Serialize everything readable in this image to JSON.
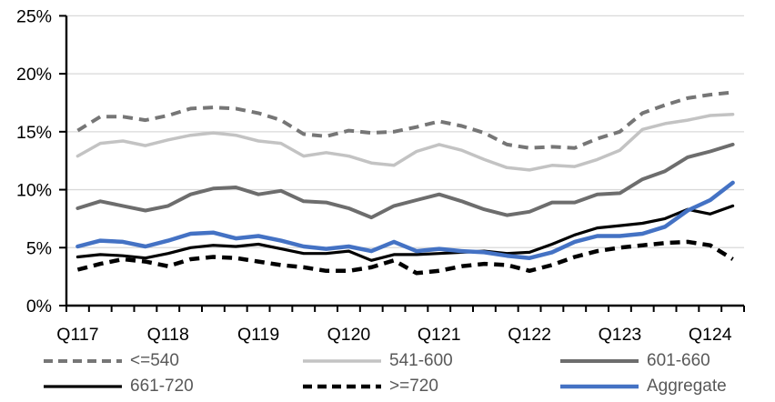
{
  "chart_data": {
    "type": "line",
    "title": "",
    "xlabel": "",
    "ylabel": "",
    "grid": true,
    "legend_position": "bottom",
    "y_axis": {
      "min": 0,
      "max": 25,
      "step": 5,
      "tick_labels": [
        "0%",
        "5%",
        "10%",
        "15%",
        "20%",
        "25%"
      ],
      "unit": "%"
    },
    "x_axis": {
      "shown_tick_labels": [
        "Q117",
        "Q118",
        "Q119",
        "Q120",
        "Q121",
        "Q122",
        "Q123",
        "Q124"
      ],
      "categories": [
        "Q117",
        "Q217",
        "Q317",
        "Q417",
        "Q118",
        "Q218",
        "Q318",
        "Q418",
        "Q119",
        "Q219",
        "Q319",
        "Q419",
        "Q120",
        "Q220",
        "Q320",
        "Q420",
        "Q121",
        "Q221",
        "Q321",
        "Q421",
        "Q122",
        "Q222",
        "Q322",
        "Q422",
        "Q123",
        "Q223",
        "Q323",
        "Q423",
        "Q124",
        "Q224"
      ]
    },
    "series": [
      {
        "name": "<=540",
        "color": "#767676",
        "style": "dashed",
        "width": 4,
        "values": [
          15.1,
          16.3,
          16.3,
          16.0,
          16.4,
          17.0,
          17.1,
          17.0,
          16.6,
          16.0,
          14.8,
          14.6,
          15.1,
          14.9,
          15.0,
          15.4,
          15.9,
          15.5,
          14.9,
          13.9,
          13.6,
          13.7,
          13.6,
          14.4,
          15.0,
          16.6,
          17.3,
          17.9,
          18.2,
          18.4
        ]
      },
      {
        "name": "541-600",
        "color": "#C3C3C3",
        "style": "solid",
        "width": 3.5,
        "values": [
          12.9,
          14.0,
          14.2,
          13.8,
          14.3,
          14.7,
          14.9,
          14.7,
          14.2,
          14.0,
          12.9,
          13.2,
          12.9,
          12.3,
          12.1,
          13.3,
          13.9,
          13.4,
          12.6,
          11.9,
          11.7,
          12.1,
          12.0,
          12.6,
          13.4,
          15.2,
          15.7,
          16.0,
          16.4,
          16.5
        ]
      },
      {
        "name": "601-660",
        "color": "#6D6D6D",
        "style": "solid",
        "width": 4,
        "values": [
          8.4,
          9.0,
          8.6,
          8.2,
          8.6,
          9.6,
          10.1,
          10.2,
          9.6,
          9.9,
          9.0,
          8.9,
          8.4,
          7.6,
          8.6,
          9.1,
          9.6,
          9.0,
          8.3,
          7.8,
          8.1,
          8.9,
          8.9,
          9.6,
          9.7,
          10.9,
          11.6,
          12.8,
          13.3,
          13.9
        ]
      },
      {
        "name": "661-720",
        "color": "#000000",
        "style": "solid",
        "width": 3.2,
        "values": [
          4.2,
          4.4,
          4.3,
          4.1,
          4.5,
          5.0,
          5.2,
          5.1,
          5.3,
          4.9,
          4.5,
          4.5,
          4.7,
          3.9,
          4.4,
          4.4,
          4.5,
          4.6,
          4.7,
          4.5,
          4.6,
          5.3,
          6.1,
          6.7,
          6.9,
          7.1,
          7.5,
          8.3,
          7.9,
          8.6
        ]
      },
      {
        "name": ">=720",
        "color": "#000000",
        "style": "dashed",
        "width": 4.5,
        "values": [
          3.1,
          3.6,
          4.0,
          3.8,
          3.4,
          4.0,
          4.2,
          4.1,
          3.8,
          3.5,
          3.3,
          3.0,
          3.0,
          3.3,
          3.9,
          2.8,
          3.0,
          3.4,
          3.6,
          3.5,
          3.0,
          3.5,
          4.2,
          4.7,
          5.0,
          5.2,
          5.4,
          5.5,
          5.2,
          4.0
        ]
      },
      {
        "name": "Aggregate",
        "color": "#4472C4",
        "style": "solid",
        "width": 4.5,
        "values": [
          5.1,
          5.6,
          5.5,
          5.1,
          5.6,
          6.2,
          6.3,
          5.8,
          6.0,
          5.6,
          5.1,
          4.9,
          5.1,
          4.7,
          5.5,
          4.7,
          4.9,
          4.7,
          4.6,
          4.3,
          4.1,
          4.6,
          5.5,
          6.0,
          6.0,
          6.2,
          6.8,
          8.2,
          9.1,
          10.6
        ]
      }
    ],
    "colors": {
      "gridline": "#D9D9D9",
      "axis": "#000000",
      "tick_label": "#000000",
      "legend_text": "#595959",
      "background": "#FFFFFF"
    }
  },
  "legend": {
    "items": [
      "<=540",
      "541-600",
      "601-660",
      "661-720",
      ">=720",
      "Aggregate"
    ]
  }
}
